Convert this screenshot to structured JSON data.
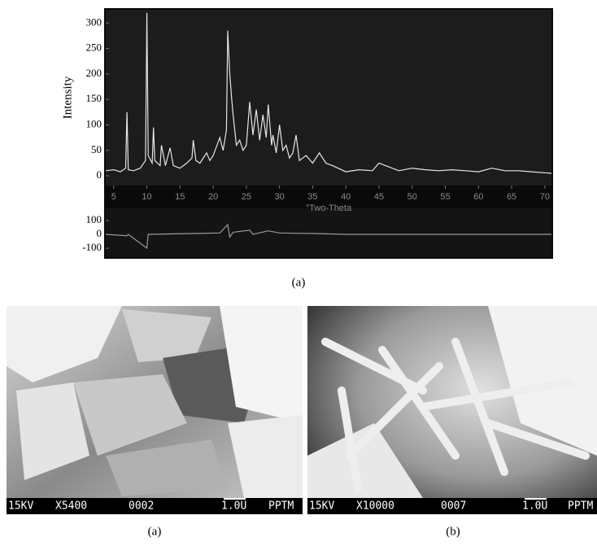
{
  "chart_data": [
    {
      "type": "line",
      "ylabel": "Intensity",
      "xlabel": "°Two-Theta",
      "x": [
        3.8,
        5,
        6,
        6.8,
        7,
        7.2,
        8,
        9,
        9.8,
        10,
        10.2,
        10.8,
        11,
        11.2,
        12,
        12.2,
        12.8,
        13.5,
        14,
        15,
        16,
        16.8,
        17,
        17.4,
        18,
        19,
        19.5,
        20,
        21,
        21.5,
        22,
        22.2,
        22.5,
        22.8,
        23,
        23.5,
        24,
        24.5,
        25,
        25.5,
        26,
        26.5,
        27,
        27.5,
        28,
        28.3,
        28.8,
        29,
        29.5,
        30,
        30.5,
        31,
        31.5,
        32,
        32.5,
        33,
        33.5,
        34,
        35,
        36,
        37,
        38,
        40,
        42,
        44,
        45,
        46,
        48,
        50,
        52,
        54,
        56,
        58,
        60,
        62,
        64,
        66,
        68,
        70,
        71
      ],
      "series": [
        {
          "color": "#e6e6e6",
          "values": [
            10,
            12,
            8,
            15,
            125,
            12,
            10,
            15,
            30,
            320,
            40,
            25,
            95,
            30,
            20,
            60,
            20,
            55,
            20,
            15,
            25,
            35,
            70,
            30,
            25,
            45,
            30,
            40,
            75,
            50,
            90,
            285,
            200,
            150,
            120,
            60,
            70,
            50,
            60,
            145,
            80,
            130,
            70,
            120,
            75,
            140,
            60,
            80,
            45,
            100,
            50,
            60,
            35,
            45,
            80,
            30,
            35,
            40,
            25,
            45,
            25,
            20,
            8,
            12,
            10,
            25,
            20,
            10,
            15,
            12,
            10,
            12,
            10,
            8,
            15,
            10,
            10,
            8,
            6,
            5
          ]
        }
      ],
      "xlim": [
        3.8,
        71
      ],
      "xticks": [
        5,
        10,
        15,
        20,
        25,
        30,
        35,
        40,
        45,
        50,
        55,
        60,
        65,
        70
      ],
      "ylim": [
        -19,
        326
      ],
      "yticks": [
        0,
        50,
        100,
        150,
        200,
        250,
        300
      ]
    },
    {
      "type": "line",
      "x": [
        3.8,
        7,
        7.2,
        10,
        10.2,
        21,
        22.2,
        22.5,
        23,
        25.5,
        26,
        28.3,
        30,
        36,
        40,
        71
      ],
      "series": [
        {
          "color": "#9a9a9a",
          "values": [
            0,
            -10,
            0,
            -100,
            0,
            10,
            70,
            -20,
            15,
            30,
            0,
            25,
            10,
            5,
            0,
            0
          ]
        }
      ],
      "xlim": [
        3.8,
        71
      ],
      "ylim": [
        -176,
        176
      ],
      "yticks": [
        100,
        0,
        -100
      ]
    }
  ],
  "captions": [
    "(a)",
    "(a)",
    "(b)"
  ],
  "sem_images": [
    {
      "label": [
        "15KV",
        "X5400",
        "0002",
        "1.0U",
        "PPTM"
      ]
    },
    {
      "label": [
        "15KV",
        "X10000",
        "0007",
        "1.0U",
        "PPTM"
      ]
    }
  ]
}
